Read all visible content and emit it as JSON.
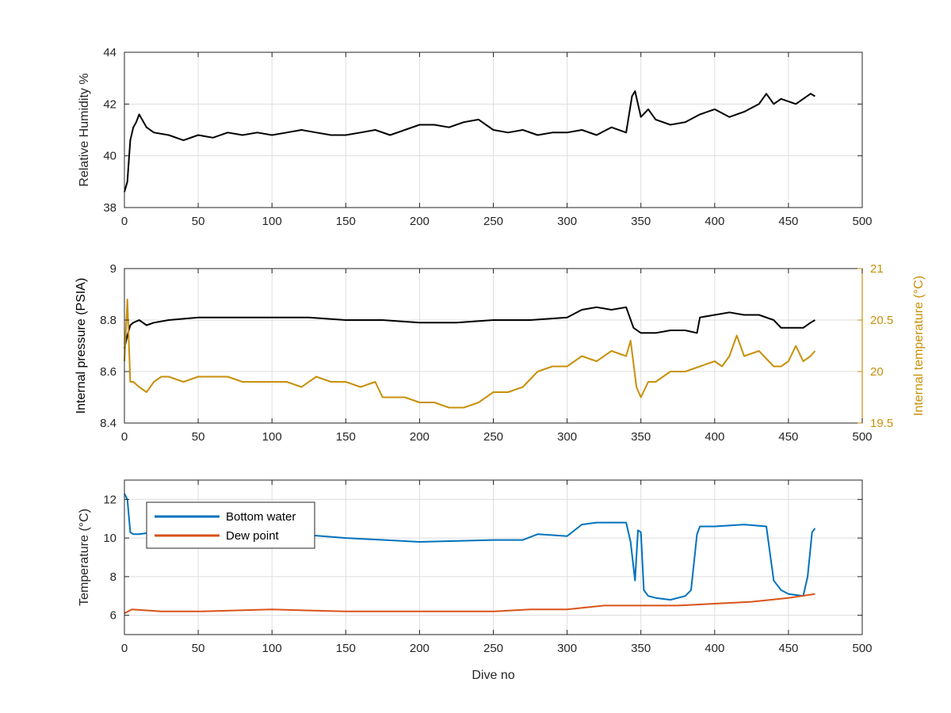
{
  "colors": {
    "black": "#000000",
    "gold": "#C8900A",
    "blue": "#0072BD",
    "orange": "#D95319",
    "grid": "#dedede",
    "axis": "#262626"
  },
  "chart_data": [
    {
      "type": "line",
      "xlabel": "",
      "ylabel": "Relative Humidity %",
      "xlim": [
        0,
        500
      ],
      "ylim": [
        38,
        44
      ],
      "xticks": [
        0,
        50,
        100,
        150,
        200,
        250,
        300,
        350,
        400,
        450,
        500
      ],
      "yticks": [
        38,
        40,
        42,
        44
      ],
      "grid": true,
      "series": [
        {
          "axis": "left",
          "color": "#000000",
          "x": [
            0,
            2,
            4,
            6,
            8,
            10,
            15,
            20,
            30,
            40,
            50,
            60,
            70,
            80,
            90,
            100,
            110,
            120,
            130,
            140,
            150,
            160,
            170,
            180,
            190,
            200,
            210,
            220,
            230,
            240,
            250,
            260,
            270,
            280,
            290,
            300,
            310,
            320,
            330,
            340,
            344,
            346,
            350,
            355,
            360,
            370,
            380,
            390,
            400,
            410,
            420,
            430,
            435,
            440,
            445,
            450,
            455,
            460,
            465,
            468
          ],
          "y": [
            38.6,
            39.0,
            40.6,
            41.1,
            41.3,
            41.6,
            41.1,
            40.9,
            40.8,
            40.6,
            40.8,
            40.7,
            40.9,
            40.8,
            40.9,
            40.8,
            40.9,
            41.0,
            40.9,
            40.8,
            40.8,
            40.9,
            41.0,
            40.8,
            41.0,
            41.2,
            41.2,
            41.1,
            41.3,
            41.4,
            41.0,
            40.9,
            41.0,
            40.8,
            40.9,
            40.9,
            41.0,
            40.8,
            41.1,
            40.9,
            42.3,
            42.5,
            41.5,
            41.8,
            41.4,
            41.2,
            41.3,
            41.6,
            41.8,
            41.5,
            41.7,
            42.0,
            42.4,
            42.0,
            42.2,
            42.1,
            42.0,
            42.2,
            42.4,
            42.3
          ]
        }
      ]
    },
    {
      "type": "line",
      "xlabel": "",
      "ylabel": "Internal pressure (PSIA)",
      "ylabel_right": "Internal temperature (°C)",
      "xlim": [
        0,
        500
      ],
      "ylim": [
        8.4,
        9
      ],
      "ylim_right": [
        19.5,
        21
      ],
      "xticks": [
        0,
        50,
        100,
        150,
        200,
        250,
        300,
        350,
        400,
        450,
        500
      ],
      "yticks": [
        8.4,
        8.6,
        8.8,
        9
      ],
      "ytick_labels": [
        "8.4",
        "8.6",
        "8.8",
        "9"
      ],
      "yticks_right": [
        19.5,
        20,
        20.5,
        21
      ],
      "ytick_labels_right": [
        "19.5",
        "20",
        "20.5",
        "21"
      ],
      "grid": true,
      "series": [
        {
          "axis": "left",
          "color": "#000000",
          "x": [
            0,
            2,
            4,
            6,
            10,
            15,
            20,
            30,
            50,
            75,
            100,
            125,
            150,
            175,
            200,
            225,
            250,
            275,
            300,
            310,
            320,
            330,
            340,
            345,
            350,
            360,
            370,
            380,
            388,
            390,
            400,
            410,
            420,
            430,
            440,
            445,
            450,
            460,
            465,
            468
          ],
          "y": [
            8.69,
            8.74,
            8.78,
            8.79,
            8.8,
            8.78,
            8.79,
            8.8,
            8.81,
            8.81,
            8.81,
            8.81,
            8.8,
            8.8,
            8.79,
            8.79,
            8.8,
            8.8,
            8.81,
            8.84,
            8.85,
            8.84,
            8.85,
            8.77,
            8.75,
            8.75,
            8.76,
            8.76,
            8.75,
            8.81,
            8.82,
            8.83,
            8.82,
            8.82,
            8.8,
            8.77,
            8.77,
            8.77,
            8.79,
            8.8
          ]
        },
        {
          "axis": "right",
          "color": "#C8900A",
          "x": [
            0,
            2,
            4,
            6,
            10,
            15,
            20,
            25,
            30,
            40,
            50,
            60,
            70,
            80,
            90,
            100,
            110,
            120,
            130,
            140,
            150,
            160,
            170,
            175,
            180,
            190,
            200,
            210,
            220,
            230,
            240,
            250,
            260,
            270,
            280,
            290,
            300,
            310,
            320,
            330,
            340,
            343,
            347,
            350,
            355,
            360,
            370,
            380,
            390,
            400,
            405,
            410,
            415,
            420,
            430,
            440,
            445,
            450,
            455,
            460,
            465,
            468
          ],
          "y": [
            20.1,
            20.7,
            19.9,
            19.9,
            19.85,
            19.8,
            19.9,
            19.95,
            19.95,
            19.9,
            19.95,
            19.95,
            19.95,
            19.9,
            19.9,
            19.9,
            19.9,
            19.85,
            19.95,
            19.9,
            19.9,
            19.85,
            19.9,
            19.75,
            19.75,
            19.75,
            19.7,
            19.7,
            19.65,
            19.65,
            19.7,
            19.8,
            19.8,
            19.85,
            20.0,
            20.05,
            20.05,
            20.15,
            20.1,
            20.2,
            20.15,
            20.3,
            19.85,
            19.75,
            19.9,
            19.9,
            20.0,
            20.0,
            20.05,
            20.1,
            20.05,
            20.15,
            20.35,
            20.15,
            20.2,
            20.05,
            20.05,
            20.1,
            20.25,
            20.1,
            20.15,
            20.2
          ]
        }
      ]
    },
    {
      "type": "line",
      "xlabel": "Dive no",
      "ylabel": "Temperature (°C)",
      "xlim": [
        0,
        500
      ],
      "ylim": [
        5,
        13
      ],
      "xticks": [
        0,
        50,
        100,
        150,
        200,
        250,
        300,
        350,
        400,
        450,
        500
      ],
      "yticks": [
        6,
        8,
        10,
        12
      ],
      "grid": true,
      "legend": "top-left",
      "series": [
        {
          "name": "Bottom water",
          "axis": "left",
          "color": "#0072BD",
          "x": [
            0,
            2,
            4,
            6,
            10,
            20,
            50,
            100,
            150,
            200,
            250,
            270,
            280,
            300,
            310,
            320,
            340,
            343,
            346,
            348,
            350,
            352,
            355,
            360,
            370,
            380,
            384,
            388,
            390,
            400,
            420,
            435,
            440,
            445,
            450,
            460,
            463,
            466,
            468
          ],
          "y": [
            12.3,
            12.0,
            10.3,
            10.2,
            10.2,
            10.3,
            10.4,
            10.3,
            10.0,
            9.8,
            9.9,
            9.9,
            10.2,
            10.1,
            10.7,
            10.8,
            10.8,
            9.8,
            7.8,
            10.4,
            10.3,
            7.3,
            7.0,
            6.9,
            6.8,
            7.0,
            7.3,
            10.2,
            10.6,
            10.6,
            10.7,
            10.6,
            7.8,
            7.3,
            7.1,
            7.0,
            8.0,
            10.3,
            10.5
          ]
        },
        {
          "name": "Dew point",
          "axis": "left",
          "color": "#D95319",
          "x": [
            0,
            5,
            25,
            50,
            100,
            150,
            200,
            250,
            275,
            300,
            325,
            350,
            375,
            400,
            425,
            450,
            468
          ],
          "y": [
            6.1,
            6.3,
            6.2,
            6.2,
            6.3,
            6.2,
            6.2,
            6.2,
            6.3,
            6.3,
            6.5,
            6.5,
            6.5,
            6.6,
            6.7,
            6.9,
            7.1
          ]
        }
      ]
    }
  ]
}
